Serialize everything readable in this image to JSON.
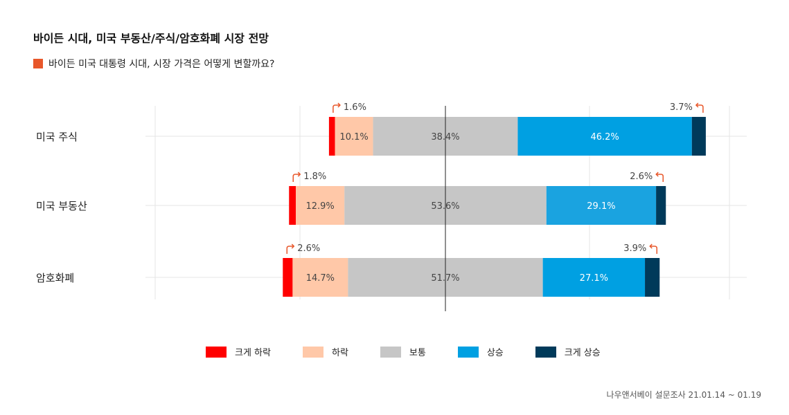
{
  "title": "바이든 시대, 미국 부동산/주식/암호화폐 시장 전망",
  "subtitle": "바이든 미국 대통령 시대, 시장 가격은 어떻게 변할까요?",
  "source": "나우앤서베이 설문조사 21.01.14 ~ 01.19",
  "colors": {
    "accent": "#e8572a",
    "arrow": "#e8572a",
    "big_down": "#ff0000",
    "down": "#ffc8a8",
    "neutral": "#c6c6c6",
    "up": "#00a0e2",
    "up_alt": "#1aa3e0",
    "big_up": "#003a5a"
  },
  "chart_data": {
    "type": "bar",
    "orientation": "horizontal",
    "stacked": true,
    "diverging": true,
    "categories": [
      "미국 주식",
      "미국 부동산",
      "암호화폐"
    ],
    "series": [
      {
        "name": "크게 하락",
        "values": [
          1.6,
          1.8,
          2.6
        ]
      },
      {
        "name": "하락",
        "values": [
          10.1,
          12.9,
          14.7
        ]
      },
      {
        "name": "보통",
        "values": [
          38.4,
          53.6,
          51.7
        ]
      },
      {
        "name": "상승",
        "values": [
          46.2,
          29.1,
          27.1
        ]
      },
      {
        "name": "크게 상승",
        "values": [
          3.7,
          2.6,
          3.9
        ]
      }
    ],
    "labels": [
      [
        "1.6%",
        "10.1%",
        "38.4%",
        "46.2%",
        "3.7%"
      ],
      [
        "1.8%",
        "12.9%",
        "53.6%",
        "29.1%",
        "2.6%"
      ],
      [
        "2.6%",
        "14.7%",
        "51.7%",
        "27.1%",
        "3.9%"
      ]
    ],
    "legend_position": "bottom",
    "grid": true
  }
}
